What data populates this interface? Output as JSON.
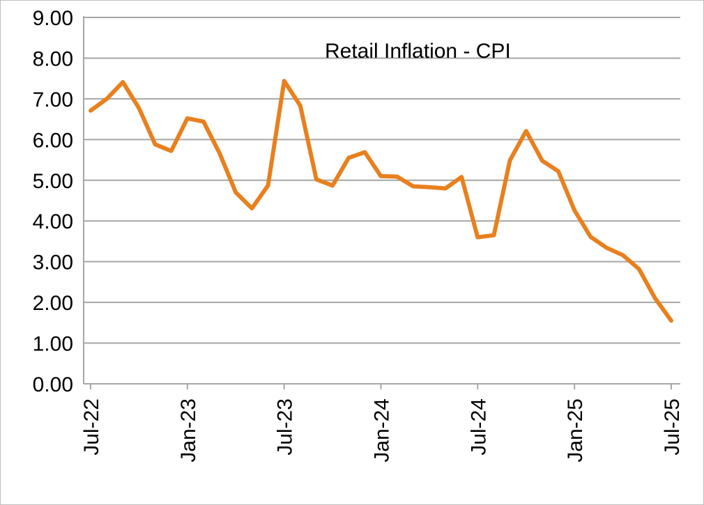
{
  "chart_data": {
    "type": "line",
    "title": "Retail Inflation - CPI",
    "xlabel": "",
    "ylabel": "",
    "ylim": [
      0,
      9
    ],
    "y_ticks": [
      "0.00",
      "1.00",
      "2.00",
      "3.00",
      "4.00",
      "5.00",
      "6.00",
      "7.00",
      "8.00",
      "9.00"
    ],
    "x_tick_labels": [
      "Jul-22",
      "Jan-23",
      "Jul-23",
      "Jan-24",
      "Jul-24",
      "Jan-25",
      "Jul-25"
    ],
    "grid": true,
    "legend": "none",
    "line_color": "#E8801E",
    "x": [
      "Jul-22",
      "Aug-22",
      "Sep-22",
      "Oct-22",
      "Nov-22",
      "Dec-22",
      "Jan-23",
      "Feb-23",
      "Mar-23",
      "Apr-23",
      "May-23",
      "Jun-23",
      "Jul-23",
      "Aug-23",
      "Sep-23",
      "Oct-23",
      "Nov-23",
      "Dec-23",
      "Jan-24",
      "Feb-24",
      "Mar-24",
      "Apr-24",
      "May-24",
      "Jun-24",
      "Jul-24",
      "Aug-24",
      "Sep-24",
      "Oct-24",
      "Nov-24",
      "Dec-24",
      "Jan-25",
      "Feb-25",
      "Mar-25",
      "Apr-25",
      "May-25",
      "Jun-25",
      "Jul-25"
    ],
    "series": [
      {
        "values": [
          6.71,
          7.0,
          7.41,
          6.77,
          5.88,
          5.72,
          6.52,
          6.44,
          5.66,
          4.7,
          4.31,
          4.87,
          7.44,
          6.83,
          5.02,
          4.87,
          5.55,
          5.69,
          5.1,
          5.09,
          4.85,
          4.83,
          4.8,
          5.08,
          3.6,
          3.65,
          5.49,
          6.21,
          5.48,
          5.22,
          4.26,
          3.61,
          3.34,
          3.16,
          2.82,
          2.1,
          1.55
        ]
      }
    ]
  }
}
